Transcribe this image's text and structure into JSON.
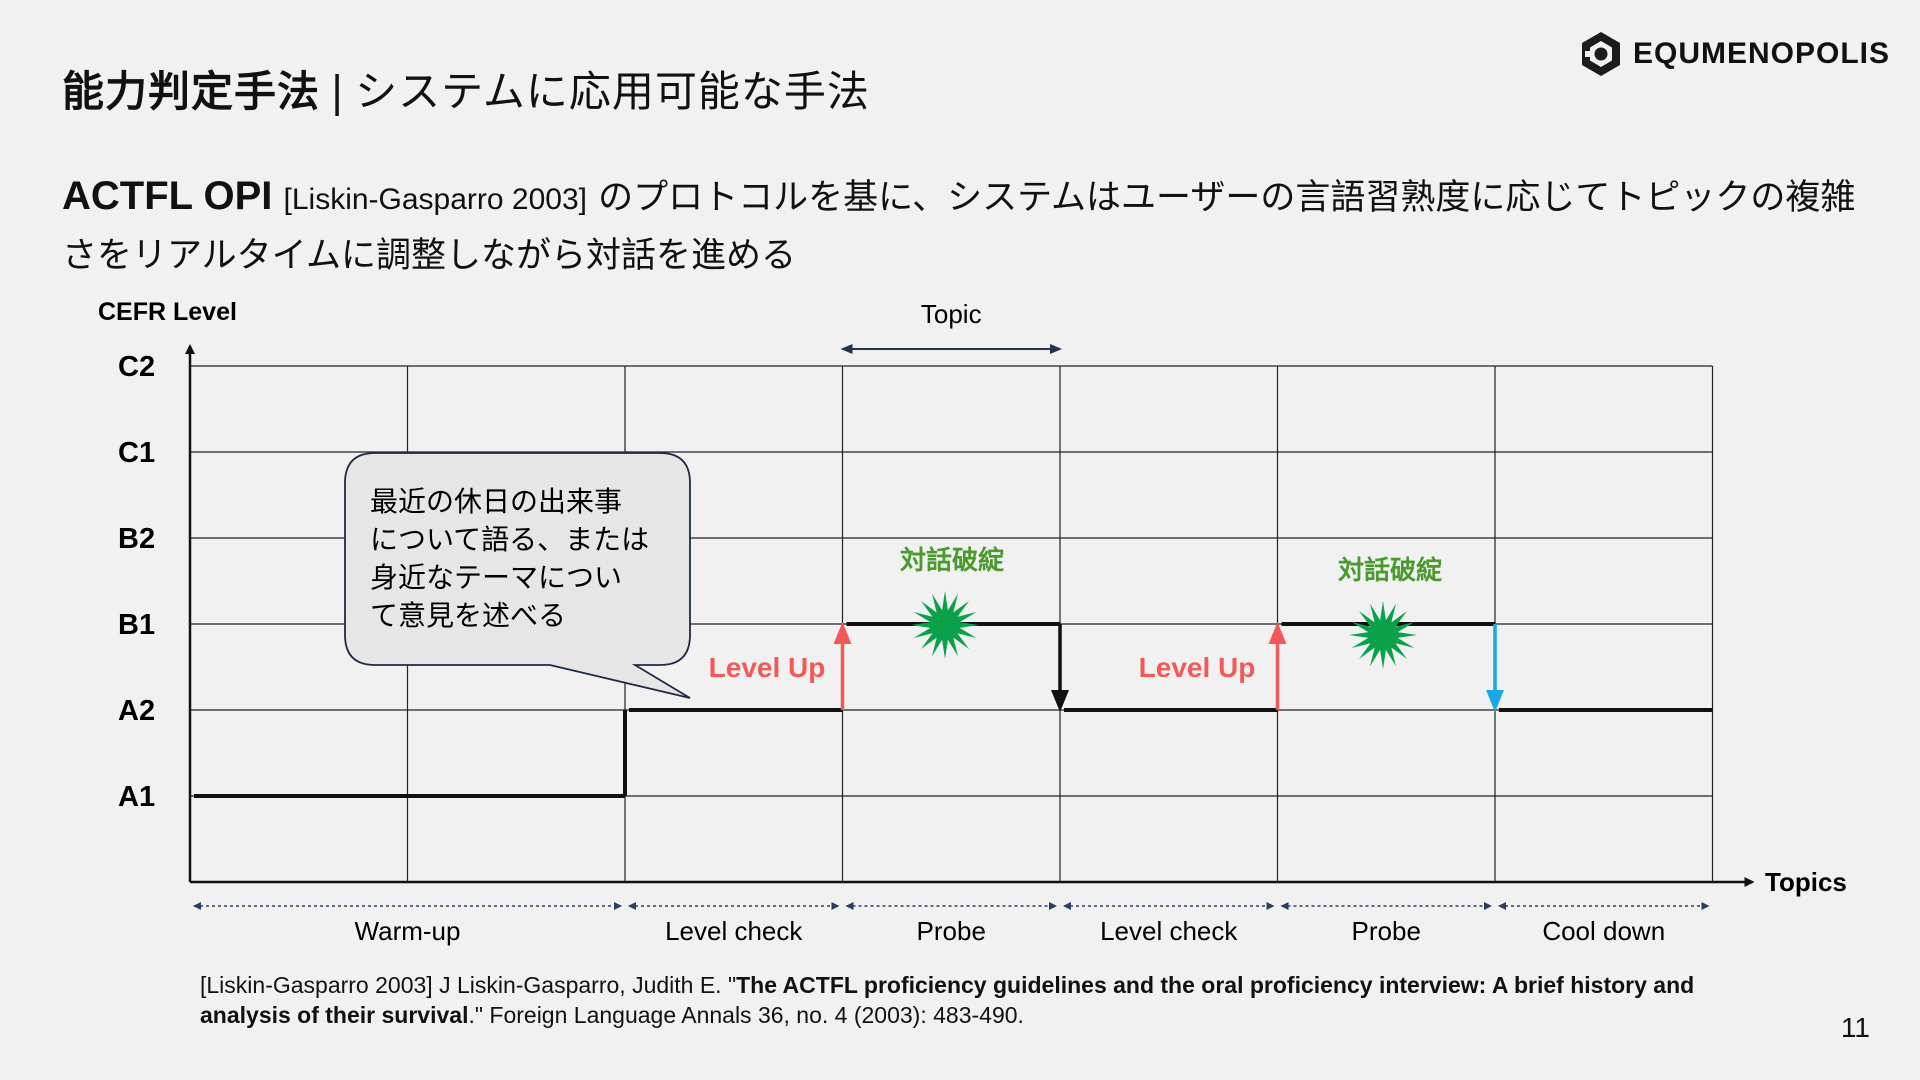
{
  "title": {
    "main": "能力判定手法",
    "separator": "|",
    "sub": "システムに応用可能な手法"
  },
  "logo": {
    "name": "EQUMENOPOLIS",
    "icon": "hexagon-logo-icon"
  },
  "description": {
    "highlight": "ACTFL OPI",
    "citation": "[Liskin-Gasparro 2003]",
    "text": "のプロトコルを基に、システムはユーザーの言語習熟度に応じてトピックの複雑さをリアルタイムに調整しながら対話を進める"
  },
  "diagram": {
    "y_axis_title": "CEFR Level",
    "x_axis_title": "Topics",
    "levels": [
      "A1",
      "A2",
      "B1",
      "B2",
      "C1",
      "C2"
    ],
    "topic_label": "Topic",
    "phases": [
      {
        "label": "Warm-up"
      },
      {
        "label": "Level check"
      },
      {
        "label": "Probe"
      },
      {
        "label": "Level check"
      },
      {
        "label": "Probe"
      },
      {
        "label": "Cool down"
      }
    ],
    "level_path": [
      {
        "from": 0,
        "to": 2,
        "level": "A1"
      },
      {
        "from": 2,
        "to": 3,
        "level": "A2"
      },
      {
        "from": 3,
        "to": 4,
        "level": "B1"
      },
      {
        "from": 4,
        "to": 5,
        "level": "A2"
      },
      {
        "from": 5,
        "to": 6,
        "level": "B1"
      },
      {
        "from": 6,
        "to": 7,
        "level": "A2"
      }
    ],
    "level_up_label": "Level Up",
    "breakdown_label": "対話破綻",
    "speech_bubble": [
      "最近の休日の出来事",
      "について語る、または",
      "身近なテーマについ",
      "て意見を述べる"
    ],
    "colors": {
      "level_up": "#f25a5a",
      "breakdown_burst": "#0aa14a",
      "breakdown_text": "#4a9a2e",
      "down_arrow_1": "#111111",
      "down_arrow_2": "#1aa8e8",
      "path": "#111111",
      "grid": "#222222",
      "bubble_fill": "#e6e6e6"
    }
  },
  "reference": {
    "prefix": "[Liskin-Gasparro 2003] J Liskin-Gasparro, Judith E. \"",
    "bold": "The ACTFL proficiency guidelines and the oral proficiency interview: A brief history and analysis of their survival",
    "suffix": ".\" Foreign Language Annals 36, no. 4 (2003): 483-490."
  },
  "page_number": "11"
}
